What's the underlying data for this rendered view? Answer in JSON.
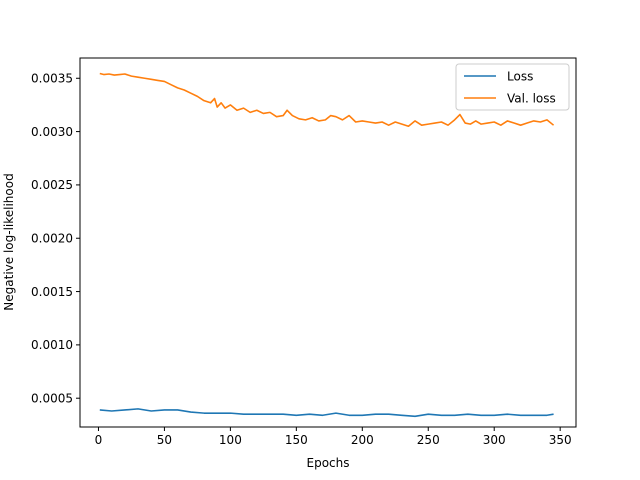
{
  "chart_data": {
    "type": "line",
    "title": "",
    "xlabel": "Epochs",
    "ylabel": "Negative log-likelihood",
    "xlim": [
      -14,
      362
    ],
    "ylim": [
      0.00023,
      0.00369
    ],
    "xticks": [
      0,
      50,
      100,
      150,
      200,
      250,
      300,
      350
    ],
    "xtick_labels": [
      "0",
      "50",
      "100",
      "150",
      "200",
      "250",
      "300",
      "350"
    ],
    "yticks": [
      0.0005,
      0.001,
      0.0015,
      0.002,
      0.0025,
      0.003,
      0.0035
    ],
    "ytick_labels": [
      "0.0005",
      "0.0010",
      "0.0015",
      "0.0020",
      "0.0025",
      "0.0030",
      "0.0035"
    ],
    "grid": false,
    "legend_position": "top-right",
    "series": [
      {
        "name": "Loss",
        "color": "#1f77b4",
        "x": [
          1,
          10,
          20,
          30,
          40,
          50,
          60,
          70,
          80,
          90,
          100,
          110,
          120,
          130,
          140,
          150,
          160,
          170,
          180,
          190,
          200,
          210,
          220,
          230,
          240,
          250,
          260,
          270,
          280,
          290,
          300,
          310,
          320,
          330,
          340,
          345
        ],
        "values": [
          0.00039,
          0.00038,
          0.00039,
          0.0004,
          0.00038,
          0.00039,
          0.00039,
          0.00037,
          0.00036,
          0.00036,
          0.00036,
          0.00035,
          0.00035,
          0.00035,
          0.00035,
          0.00034,
          0.00035,
          0.00034,
          0.00036,
          0.00034,
          0.00034,
          0.00035,
          0.00035,
          0.00034,
          0.00033,
          0.00035,
          0.00034,
          0.00034,
          0.00035,
          0.00034,
          0.00034,
          0.00035,
          0.00034,
          0.00034,
          0.00034,
          0.00035
        ]
      },
      {
        "name": "Val. loss",
        "color": "#ff7f0e",
        "x": [
          1,
          4,
          8,
          12,
          16,
          20,
          25,
          30,
          35,
          40,
          45,
          50,
          55,
          60,
          65,
          70,
          75,
          80,
          85,
          88,
          90,
          93,
          96,
          100,
          105,
          110,
          115,
          120,
          125,
          130,
          135,
          140,
          143,
          147,
          152,
          157,
          162,
          167,
          172,
          176,
          180,
          185,
          190,
          195,
          200,
          205,
          210,
          215,
          220,
          225,
          230,
          235,
          240,
          245,
          250,
          255,
          260,
          265,
          270,
          274,
          278,
          282,
          286,
          290,
          295,
          300,
          305,
          310,
          315,
          320,
          325,
          330,
          335,
          340,
          345
        ],
        "values": [
          0.003545,
          0.003535,
          0.00354,
          0.00353,
          0.003535,
          0.00354,
          0.00352,
          0.00351,
          0.0035,
          0.00349,
          0.00348,
          0.00347,
          0.00344,
          0.00341,
          0.00339,
          0.00336,
          0.00333,
          0.00329,
          0.00327,
          0.00331,
          0.00323,
          0.00327,
          0.00322,
          0.00325,
          0.0032,
          0.00322,
          0.00318,
          0.0032,
          0.00317,
          0.00318,
          0.00314,
          0.00315,
          0.0032,
          0.00315,
          0.00312,
          0.00311,
          0.00313,
          0.0031,
          0.00311,
          0.00315,
          0.00314,
          0.00311,
          0.00315,
          0.00309,
          0.0031,
          0.00309,
          0.00308,
          0.00309,
          0.00306,
          0.00309,
          0.00307,
          0.00305,
          0.0031,
          0.00306,
          0.00307,
          0.00308,
          0.00309,
          0.00306,
          0.00311,
          0.00316,
          0.00308,
          0.00307,
          0.0031,
          0.00307,
          0.00308,
          0.00309,
          0.00306,
          0.0031,
          0.00308,
          0.00306,
          0.00308,
          0.0031,
          0.00309,
          0.00311,
          0.00306
        ]
      }
    ]
  }
}
